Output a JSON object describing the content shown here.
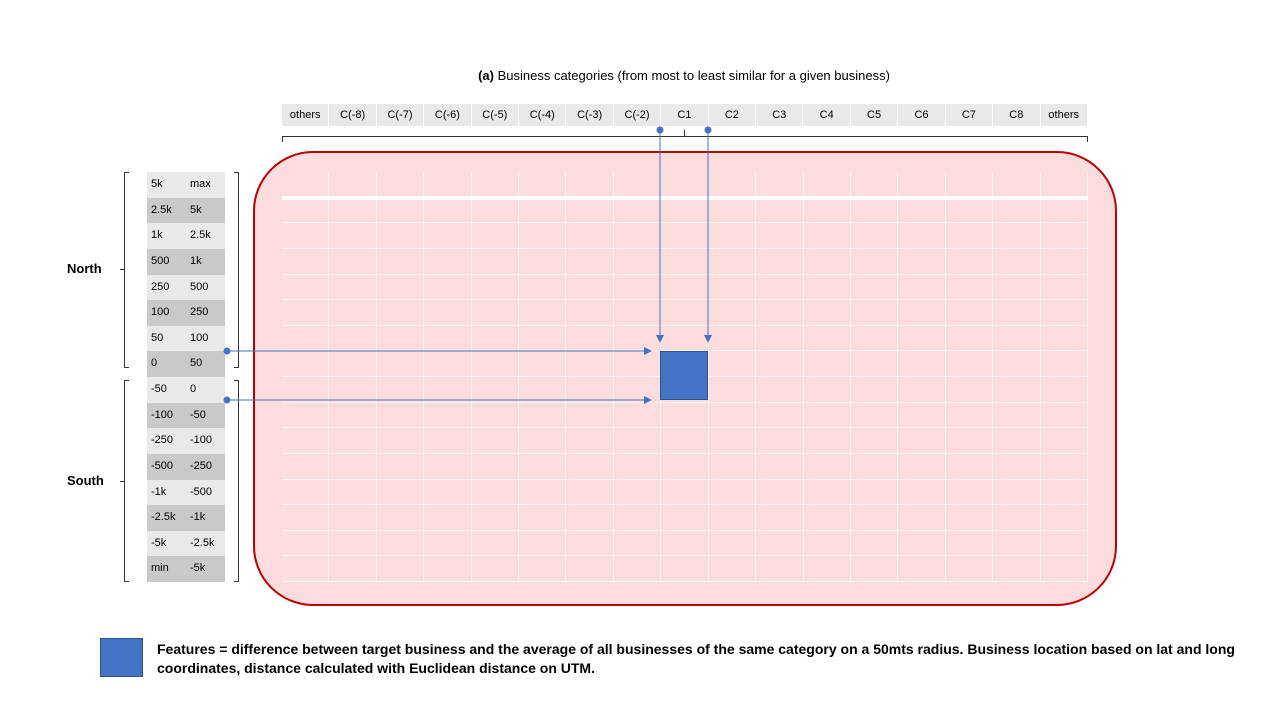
{
  "title": {
    "bold_part": "(a)",
    "rest": "Business categories (from most to least similar for a given business)"
  },
  "columns": [
    "others",
    "C(-8)",
    "C(-7)",
    "C(-6)",
    "C(-5)",
    "C(-4)",
    "C(-3)",
    "C(-2)",
    "C1",
    "C2",
    "C3",
    "C4",
    "C5",
    "C6",
    "C7",
    "C8",
    "others"
  ],
  "rows": [
    [
      "5k",
      "max"
    ],
    [
      "2.5k",
      "5k"
    ],
    [
      "1k",
      "2.5k"
    ],
    [
      "500",
      "1k"
    ],
    [
      "250",
      "500"
    ],
    [
      "100",
      "250"
    ],
    [
      "50",
      "100"
    ],
    [
      "0",
      "50"
    ],
    [
      "-50",
      "0"
    ],
    [
      "-100",
      "-50"
    ],
    [
      "-250",
      "-100"
    ],
    [
      "-500",
      "-250"
    ],
    [
      "-1k",
      "-500"
    ],
    [
      "-2.5k",
      "-1k"
    ],
    [
      "-5k",
      "-2.5k"
    ],
    [
      "min",
      "-5k"
    ]
  ],
  "regions": {
    "north": "North",
    "south": "South"
  },
  "colors": {
    "feature": "#4472c4",
    "panel_fill": "#fcdcdc",
    "panel_border": "#c00000",
    "connector": "#4472c4"
  },
  "legend": {
    "text": "Features = difference between target business and the average of all businesses of the same category on a 50mts radius. Business location based on lat and long coordinates, distance calculated with Euclidean distance on UTM."
  }
}
